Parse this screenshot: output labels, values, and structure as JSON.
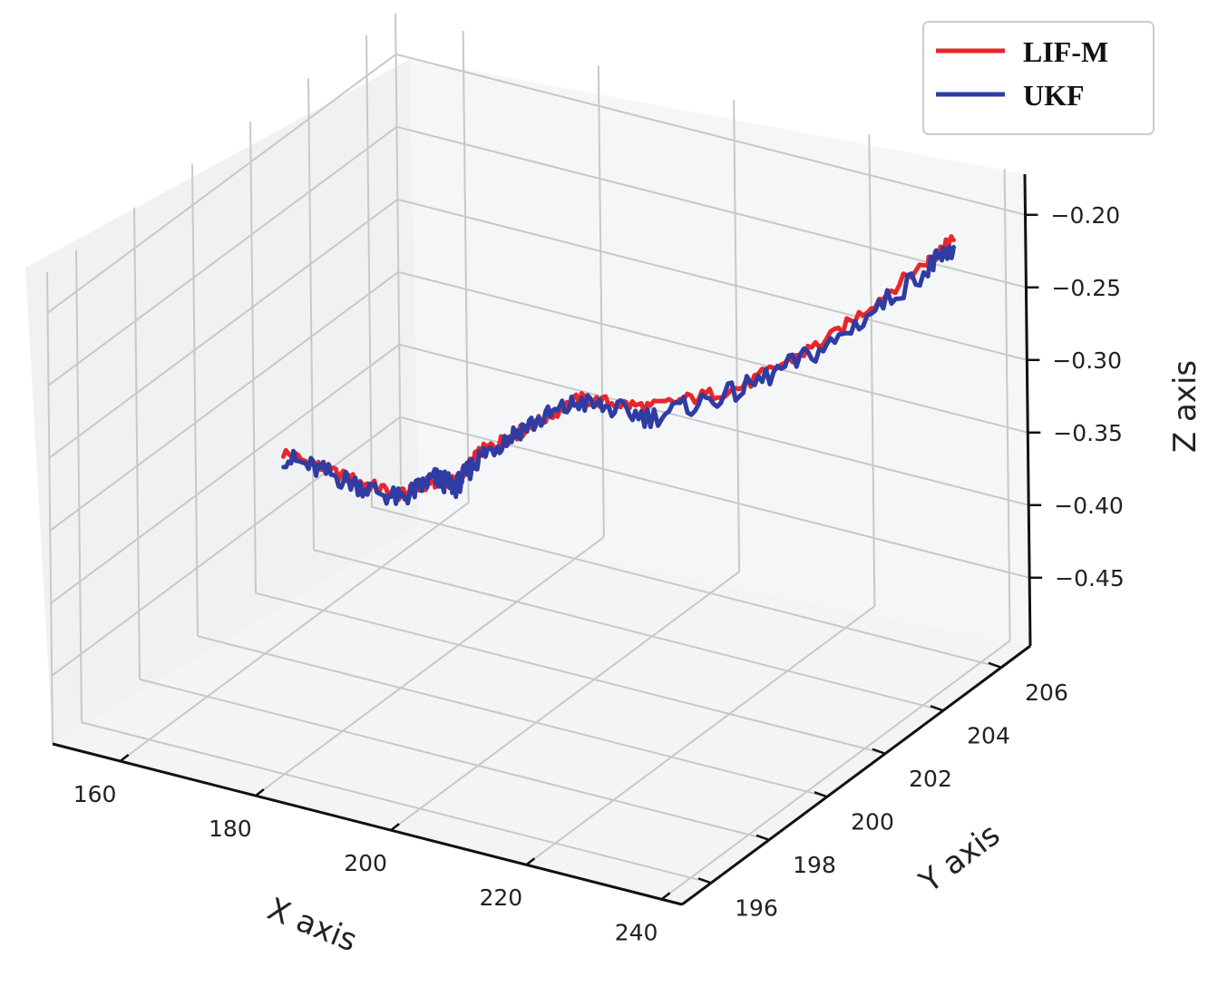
{
  "chart_data": {
    "type": "line",
    "projection": "3d",
    "xlabel": "X axis",
    "ylabel": "Y axis",
    "zlabel": "Z axis",
    "x_ticks": [
      "160",
      "180",
      "200",
      "220",
      "240"
    ],
    "y_ticks": [
      "196",
      "198",
      "200",
      "202",
      "204",
      "206"
    ],
    "z_ticks": [
      "−0.20",
      "−0.25",
      "−0.30",
      "−0.35",
      "−0.40",
      "−0.45"
    ],
    "xlim": [
      150,
      243
    ],
    "ylim": [
      195,
      207
    ],
    "zlim": [
      -0.497,
      -0.172
    ],
    "grid": true,
    "legend_position": "top-right",
    "series": [
      {
        "name": "LIF-M",
        "color": "#e8262b",
        "x": [
          150,
          158,
          166,
          174,
          182,
          190,
          198,
          206,
          214,
          222,
          230,
          238,
          241
        ],
        "y": [
          203,
          203.2,
          203.3,
          202.6,
          201.5,
          200.5,
          200.1,
          200.2,
          200.8,
          202.0,
          203.3,
          204.8,
          205.0
        ],
        "z": [
          -0.415,
          -0.425,
          -0.43,
          -0.4,
          -0.375,
          -0.33,
          -0.3,
          -0.27,
          -0.275,
          -0.27,
          -0.245,
          -0.205,
          -0.19
        ]
      },
      {
        "name": "UKF",
        "color": "#2e3ca3",
        "x": [
          150,
          158,
          166,
          174,
          182,
          190,
          198,
          206,
          214,
          222,
          230,
          238,
          241
        ],
        "y": [
          203,
          203.2,
          203.3,
          202.6,
          201.5,
          200.5,
          200.1,
          200.2,
          200.8,
          202.0,
          203.3,
          204.8,
          205.0
        ],
        "z": [
          -0.418,
          -0.427,
          -0.433,
          -0.398,
          -0.378,
          -0.333,
          -0.298,
          -0.272,
          -0.282,
          -0.272,
          -0.25,
          -0.21,
          -0.195
        ]
      }
    ]
  }
}
